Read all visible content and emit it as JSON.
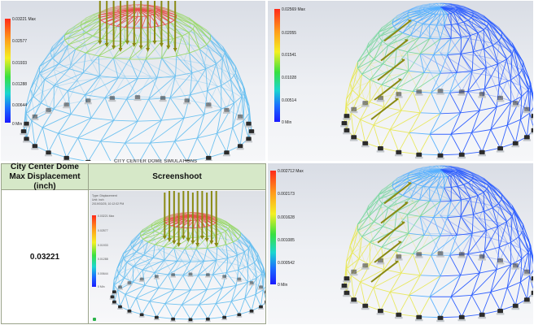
{
  "panels": [
    {
      "id": "p1",
      "legend": {
        "max": "0.03221 Max",
        "t2": "0.02577",
        "t3": "0.01933",
        "t4": "0.01288",
        "t5": "0.00644",
        "min": "0 Min"
      }
    },
    {
      "id": "p2",
      "legend": {
        "max": "0.02569 Max",
        "t2": "0.02055",
        "t3": "0.01541",
        "t4": "0.01028",
        "t5": "0.00514",
        "min": "0 Min"
      }
    },
    {
      "id": "p4",
      "legend": {
        "max": "0.002712 Max",
        "t2": "0.002173",
        "t3": "0.001628",
        "t4": "0.001085",
        "t5": "0.000542",
        "min": "0 Min"
      }
    }
  ],
  "table": {
    "header_col1": "City Center Dome Max Displacement (inch)",
    "header_col2": "Screenshoot",
    "value": "0.03221",
    "overlap_text": "CITY CENTER DOME SIMULATIONS",
    "mini_legend": {
      "max": "0.03221 Max",
      "t2": "0.02577",
      "t3": "0.01933",
      "t4": "0.01288",
      "t5": "0.00644",
      "min": "0 Min"
    },
    "mini_info": [
      "Type: Displacement",
      "Unit: inch",
      "2019/03/25, 10:12:02 PM"
    ]
  },
  "colors": {
    "header_bg": "#d6e8c8",
    "legend_top": "#ff2a1a",
    "legend_bottom": "#1a1aff"
  }
}
